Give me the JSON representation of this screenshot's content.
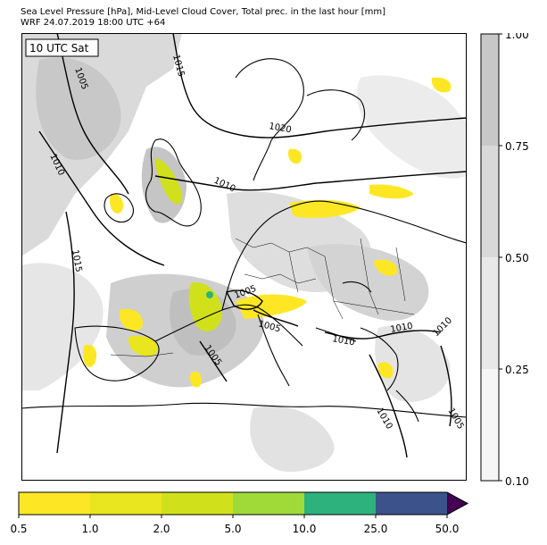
{
  "title": {
    "line1": "Sea Level Pressure [hPa], Mid-Level Cloud Cover, Total prec. in the last hour [mm]",
    "line2": "WRF 24.07.2019 18:00 UTC +64"
  },
  "map": {
    "time_label": "10 UTC Sat",
    "isobar_labels": [
      "1005",
      "1015",
      "1020",
      "1010",
      "1010",
      "1015",
      "1005",
      "1005",
      "1005",
      "1010",
      "1010",
      "1010",
      "1010",
      "1005"
    ]
  },
  "cloud_colorbar": {
    "ticks": [
      "1.00",
      "0.75",
      "0.50",
      "0.25",
      "0.10"
    ],
    "colors": [
      "#c8c8c8",
      "#d9d9d9",
      "#e8e8e8",
      "#f6f6f6"
    ]
  },
  "precip_colorbar": {
    "ticks": [
      "0.5",
      "1.0",
      "2.0",
      "5.0",
      "10.0",
      "25.0",
      "50.0"
    ],
    "colors": [
      "#fde725",
      "#e9e51e",
      "#d0e11c",
      "#a0da39",
      "#2db27d",
      "#3b528b",
      "#440154"
    ]
  }
}
